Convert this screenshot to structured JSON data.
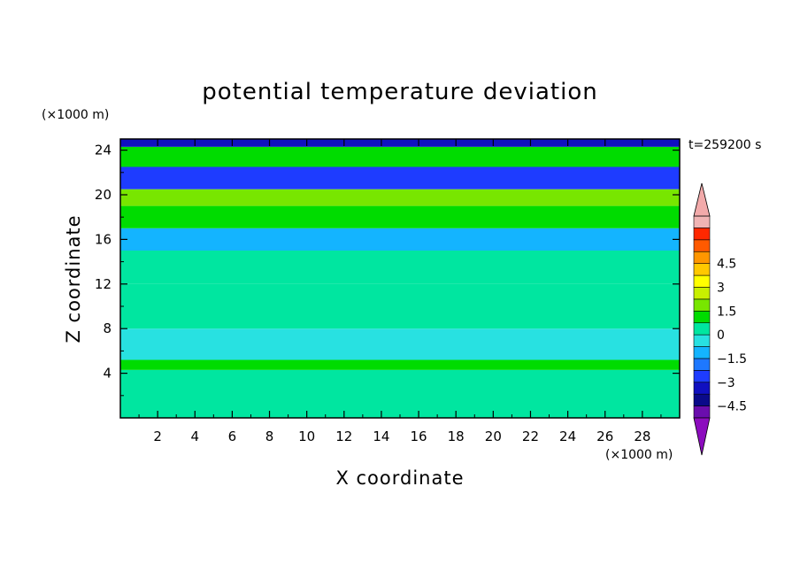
{
  "chart_data": {
    "type": "heatmap",
    "title": "potential temperature deviation",
    "xlabel": "X coordinate",
    "ylabel": "Z coordinate",
    "x_unit": "(×1000 m)",
    "y_unit": "(×1000 m)",
    "time_label": "t=259200 s",
    "xlim": [
      0,
      30
    ],
    "ylim": [
      0,
      25
    ],
    "x_ticks": [
      "2",
      "4",
      "6",
      "8",
      "10",
      "12",
      "14",
      "16",
      "18",
      "20",
      "22",
      "24",
      "26",
      "28"
    ],
    "y_ticks": [
      "4",
      "8",
      "12",
      "16",
      "20",
      "24"
    ],
    "colorbar": {
      "tick_labels": [
        "4.5",
        "3",
        "1.5",
        "0",
        "−1.5",
        "−3",
        "−4.5"
      ],
      "tick_values": [
        4.5,
        3,
        1.5,
        0,
        -1.5,
        -3,
        -4.5
      ],
      "levels_min": -5.25,
      "levels_step": 0.75,
      "colors": [
        "#6a0dad",
        "#0a0a8a",
        "#1010c0",
        "#1e3cff",
        "#1e78ff",
        "#14b4ff",
        "#28e1e1",
        "#00e6a0",
        "#00dc00",
        "#78e600",
        "#c8f000",
        "#ffff00",
        "#ffc800",
        "#ff9600",
        "#ff5a00",
        "#ff2800",
        "#f0b4b4"
      ],
      "under_color": "#8c0cbe",
      "over_color": "#f2aaaa"
    },
    "bands": [
      {
        "z_min": 0,
        "z_max": 4.3,
        "value": 0.2
      },
      {
        "z_min": 4.3,
        "z_max": 5.2,
        "value": 0.9
      },
      {
        "z_min": 5.2,
        "z_max": 8,
        "value": -0.3
      },
      {
        "z_min": 8,
        "z_max": 12,
        "value": 0.1
      },
      {
        "z_min": 12,
        "z_max": 15,
        "value": 0.4
      },
      {
        "z_min": 15,
        "z_max": 17,
        "value": -1.2
      },
      {
        "z_min": 17,
        "z_max": 19,
        "value": 0.9
      },
      {
        "z_min": 19,
        "z_max": 20.5,
        "value": 1.8
      },
      {
        "z_min": 20.5,
        "z_max": 22.5,
        "value": -3
      },
      {
        "z_min": 22.5,
        "z_max": 24.3,
        "value": 1.2
      },
      {
        "z_min": 24.3,
        "z_max": 25,
        "value": -3.5
      }
    ]
  }
}
